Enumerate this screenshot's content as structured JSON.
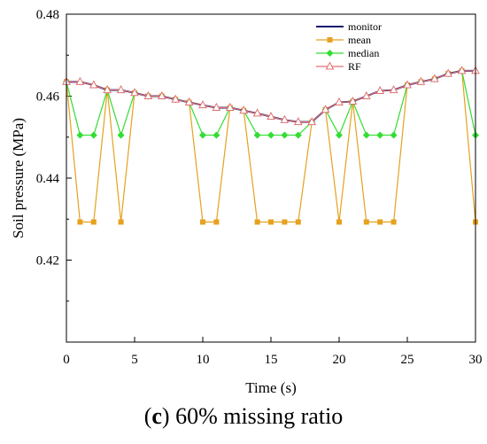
{
  "caption": {
    "prefix": "(",
    "letter": "c",
    "suffix": ") 60% missing ratio"
  },
  "chart_data": {
    "type": "line",
    "title": "",
    "xlabel": "Time (s)",
    "ylabel": "Soil pressure (MPa)",
    "xlim": [
      0,
      30
    ],
    "ylim": [
      0.4,
      0.48
    ],
    "xticks": [
      0,
      5,
      10,
      15,
      20,
      25,
      30
    ],
    "yticks": [
      0.42,
      0.44,
      0.46,
      0.48
    ],
    "grid": false,
    "legend_position": "top-right",
    "x": [
      0,
      1,
      2,
      3,
      4,
      5,
      6,
      7,
      8,
      9,
      10,
      11,
      12,
      13,
      14,
      15,
      16,
      17,
      18,
      19,
      20,
      21,
      22,
      23,
      24,
      25,
      26,
      27,
      28,
      29,
      30
    ],
    "series": [
      {
        "name": "monitor",
        "color": "#1a1a6e",
        "marker": "none",
        "values": [
          0.4635,
          0.4635,
          0.4627,
          0.4615,
          0.4615,
          0.4608,
          0.46,
          0.46,
          0.4592,
          0.4585,
          0.4578,
          0.4572,
          0.4572,
          0.4565,
          0.4558,
          0.455,
          0.4542,
          0.4537,
          0.4537,
          0.4567,
          0.4585,
          0.4587,
          0.46,
          0.4613,
          0.4615,
          0.4627,
          0.4635,
          0.4642,
          0.4655,
          0.4662,
          0.4662
        ]
      },
      {
        "name": "mean",
        "color": "#e6a11e",
        "marker": "square",
        "values": [
          0.4635,
          0.4293,
          0.4293,
          0.4615,
          0.4293,
          0.4608,
          0.46,
          0.46,
          0.4592,
          0.4585,
          0.4293,
          0.4293,
          0.4572,
          0.4565,
          0.4293,
          0.4293,
          0.4293,
          0.4293,
          0.4537,
          0.4567,
          0.4293,
          0.4587,
          0.4293,
          0.4293,
          0.4293,
          0.4627,
          0.4635,
          0.4642,
          0.4655,
          0.4662,
          0.4293
        ]
      },
      {
        "name": "median",
        "color": "#33dd33",
        "marker": "diamond",
        "values": [
          0.4635,
          0.4505,
          0.4505,
          0.4615,
          0.4505,
          0.4608,
          0.46,
          0.46,
          0.4592,
          0.4585,
          0.4505,
          0.4505,
          0.4572,
          0.4565,
          0.4505,
          0.4505,
          0.4505,
          0.4505,
          0.4537,
          0.4567,
          0.4505,
          0.4587,
          0.4505,
          0.4505,
          0.4505,
          0.4627,
          0.4635,
          0.4642,
          0.4655,
          0.4662,
          0.4505
        ]
      },
      {
        "name": "RF",
        "color": "#e07070",
        "marker": "triangle",
        "values": [
          0.4635,
          0.4635,
          0.4627,
          0.4615,
          0.4615,
          0.4608,
          0.46,
          0.46,
          0.4592,
          0.4585,
          0.4578,
          0.4572,
          0.4572,
          0.4565,
          0.4558,
          0.455,
          0.4542,
          0.4537,
          0.4537,
          0.4567,
          0.4585,
          0.4587,
          0.46,
          0.4613,
          0.4615,
          0.4627,
          0.4635,
          0.4642,
          0.4655,
          0.4662,
          0.4662
        ]
      }
    ]
  }
}
